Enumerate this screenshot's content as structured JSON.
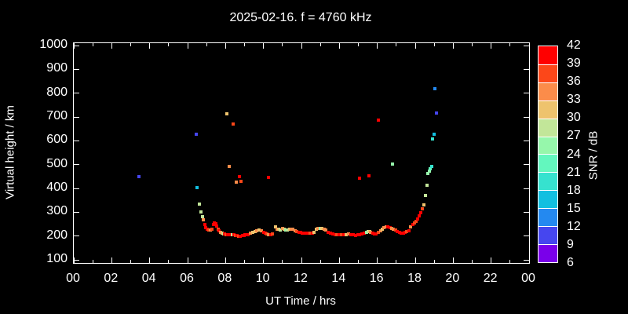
{
  "title": "2025-02-16. f = 4760 kHz",
  "chart_data": {
    "type": "scatter",
    "title": "2025-02-16. f = 4760 kHz",
    "xlabel": "UT Time / hrs",
    "ylabel": "Virtual height / km",
    "xlim": [
      0,
      24
    ],
    "ylim": [
      100,
      1000
    ],
    "grid": false,
    "x_tick_hours": [
      0,
      2,
      4,
      6,
      8,
      10,
      12,
      14,
      16,
      18,
      20,
      22,
      24
    ],
    "x_tick_labels": [
      "00",
      "02",
      "04",
      "06",
      "08",
      "10",
      "12",
      "14",
      "16",
      "18",
      "20",
      "22",
      "00"
    ],
    "x_minor_hours": [
      1,
      3,
      5,
      7,
      9,
      11,
      13,
      15,
      17,
      19,
      21,
      23
    ],
    "y_tick_values": [
      100,
      200,
      300,
      400,
      500,
      600,
      700,
      800,
      900,
      1000
    ],
    "point_meaning": [
      "ut_hours",
      "virtual_height_km",
      "snr_db"
    ],
    "points": [
      [
        3.42,
        451,
        10
      ],
      [
        6.44,
        627,
        10
      ],
      [
        6.5,
        403,
        16
      ],
      [
        8.05,
        713,
        31
      ],
      [
        8.18,
        492,
        34
      ],
      [
        8.39,
        670,
        37
      ],
      [
        8.58,
        425,
        34
      ],
      [
        8.72,
        450,
        40
      ],
      [
        8.82,
        430,
        37
      ],
      [
        10.27,
        447,
        40
      ],
      [
        15.05,
        444,
        40
      ],
      [
        15.54,
        454,
        40
      ],
      [
        16.05,
        686,
        40
      ],
      [
        16.78,
        503,
        25
      ],
      [
        18.91,
        609,
        19
      ],
      [
        18.98,
        628,
        16
      ],
      [
        19.03,
        820,
        13
      ],
      [
        19.1,
        715,
        10
      ],
      [
        6.6,
        333,
        28
      ],
      [
        6.72,
        300,
        28
      ],
      [
        6.78,
        281,
        28
      ],
      [
        6.84,
        268,
        34
      ],
      [
        6.9,
        248,
        40
      ],
      [
        6.97,
        236,
        40
      ],
      [
        7.05,
        230,
        40
      ],
      [
        7.13,
        226,
        37
      ],
      [
        7.21,
        225,
        34
      ],
      [
        7.29,
        228,
        37
      ],
      [
        7.36,
        247,
        40
      ],
      [
        7.42,
        254,
        40
      ],
      [
        7.48,
        251,
        40
      ],
      [
        7.54,
        241,
        40
      ],
      [
        7.6,
        229,
        37
      ],
      [
        7.67,
        223,
        40
      ],
      [
        7.74,
        214,
        34
      ],
      [
        7.81,
        211,
        31
      ],
      [
        7.89,
        210,
        28
      ],
      [
        7.96,
        208,
        40
      ],
      [
        8.04,
        206,
        37
      ],
      [
        8.12,
        205,
        40
      ],
      [
        8.21,
        204,
        40
      ],
      [
        8.29,
        205,
        40
      ],
      [
        8.37,
        205,
        28
      ],
      [
        8.46,
        204,
        40
      ],
      [
        8.54,
        203,
        37
      ],
      [
        8.62,
        202,
        40
      ],
      [
        8.71,
        200,
        37
      ],
      [
        8.79,
        200,
        40
      ],
      [
        8.88,
        201,
        40
      ],
      [
        8.96,
        203,
        40
      ],
      [
        9.04,
        206,
        40
      ],
      [
        9.12,
        206,
        40
      ],
      [
        9.2,
        207,
        40
      ],
      [
        9.3,
        211,
        34
      ],
      [
        9.42,
        214,
        31
      ],
      [
        9.54,
        219,
        31
      ],
      [
        9.66,
        222,
        34
      ],
      [
        9.78,
        225,
        31
      ],
      [
        9.9,
        222,
        34
      ],
      [
        10.02,
        217,
        40
      ],
      [
        10.1,
        213,
        40
      ],
      [
        10.19,
        208,
        37
      ],
      [
        10.28,
        205,
        34
      ],
      [
        10.38,
        205,
        40
      ],
      [
        10.48,
        208,
        37
      ],
      [
        10.62,
        237,
        31
      ],
      [
        10.7,
        230,
        34
      ],
      [
        10.79,
        228,
        31
      ],
      [
        10.9,
        226,
        28
      ],
      [
        11.0,
        231,
        34
      ],
      [
        11.09,
        230,
        31
      ],
      [
        11.17,
        226,
        25
      ],
      [
        11.26,
        226,
        28
      ],
      [
        11.37,
        230,
        31
      ],
      [
        11.46,
        230,
        34
      ],
      [
        11.56,
        227,
        34
      ],
      [
        11.66,
        222,
        34
      ],
      [
        11.76,
        219,
        37
      ],
      [
        11.86,
        217,
        40
      ],
      [
        11.96,
        217,
        40
      ],
      [
        12.06,
        213,
        40
      ],
      [
        12.16,
        211,
        40
      ],
      [
        12.26,
        211,
        40
      ],
      [
        12.36,
        213,
        40
      ],
      [
        12.46,
        211,
        37
      ],
      [
        12.56,
        212,
        40
      ],
      [
        12.66,
        216,
        31
      ],
      [
        12.78,
        228,
        31
      ],
      [
        12.88,
        231,
        34
      ],
      [
        12.98,
        233,
        25
      ],
      [
        13.08,
        232,
        31
      ],
      [
        13.18,
        229,
        34
      ],
      [
        13.28,
        224,
        34
      ],
      [
        13.4,
        215,
        40
      ],
      [
        13.52,
        212,
        40
      ],
      [
        13.64,
        208,
        40
      ],
      [
        13.76,
        205,
        40
      ],
      [
        13.88,
        204,
        37
      ],
      [
        14.0,
        204,
        40
      ],
      [
        14.12,
        205,
        37
      ],
      [
        14.24,
        205,
        40
      ],
      [
        14.36,
        207,
        31
      ],
      [
        14.48,
        210,
        34
      ],
      [
        14.6,
        207,
        40
      ],
      [
        14.72,
        204,
        40
      ],
      [
        14.84,
        203,
        40
      ],
      [
        14.96,
        204,
        40
      ],
      [
        15.08,
        207,
        40
      ],
      [
        15.2,
        209,
        40
      ],
      [
        15.32,
        212,
        40
      ],
      [
        15.42,
        215,
        25
      ],
      [
        15.5,
        218,
        28
      ],
      [
        15.58,
        219,
        31
      ],
      [
        15.66,
        217,
        34
      ],
      [
        15.75,
        213,
        40
      ],
      [
        15.85,
        209,
        40
      ],
      [
        15.95,
        210,
        40
      ],
      [
        16.06,
        214,
        37
      ],
      [
        16.16,
        221,
        34
      ],
      [
        16.26,
        229,
        31
      ],
      [
        16.36,
        235,
        34
      ],
      [
        16.46,
        239,
        34
      ],
      [
        16.56,
        239,
        40
      ],
      [
        16.66,
        236,
        40
      ],
      [
        16.76,
        232,
        34
      ],
      [
        16.86,
        228,
        34
      ],
      [
        16.96,
        224,
        37
      ],
      [
        17.06,
        219,
        40
      ],
      [
        17.16,
        216,
        40
      ],
      [
        17.26,
        213,
        40
      ],
      [
        17.36,
        212,
        40
      ],
      [
        17.46,
        214,
        40
      ],
      [
        17.56,
        218,
        37
      ],
      [
        17.66,
        223,
        40
      ],
      [
        17.76,
        240,
        34
      ],
      [
        17.86,
        250,
        40
      ],
      [
        17.96,
        255,
        37
      ],
      [
        18.06,
        261,
        37
      ],
      [
        18.14,
        272,
        40
      ],
      [
        18.22,
        285,
        40
      ],
      [
        18.3,
        299,
        40
      ],
      [
        18.38,
        314,
        37
      ],
      [
        18.45,
        330,
        31
      ],
      [
        18.52,
        369,
        28
      ],
      [
        18.62,
        413,
        28
      ],
      [
        18.68,
        462,
        25
      ],
      [
        18.74,
        472,
        25
      ],
      [
        18.8,
        484,
        22
      ],
      [
        18.86,
        493,
        19
      ]
    ]
  },
  "colorbar": {
    "label": "SNR / dB",
    "values_top_to_bottom": [
      "42",
      "39",
      "36",
      "33",
      "30",
      "27",
      "24",
      "21",
      "18",
      "15",
      "12",
      "9",
      "6"
    ],
    "colors_top_to_bottom": [
      "#ff0000",
      "#fc4719",
      "#fb8c4a",
      "#eec36d",
      "#c2e699",
      "#96f7ab",
      "#63f7be",
      "#36e2cf",
      "#12bfe0",
      "#2489f0",
      "#4646ef",
      "#7a00ea"
    ],
    "snr_min": 6,
    "snr_max": 42,
    "snr_step": 3
  },
  "colors": {
    "background": "#000000",
    "foreground": "#ffffff"
  }
}
